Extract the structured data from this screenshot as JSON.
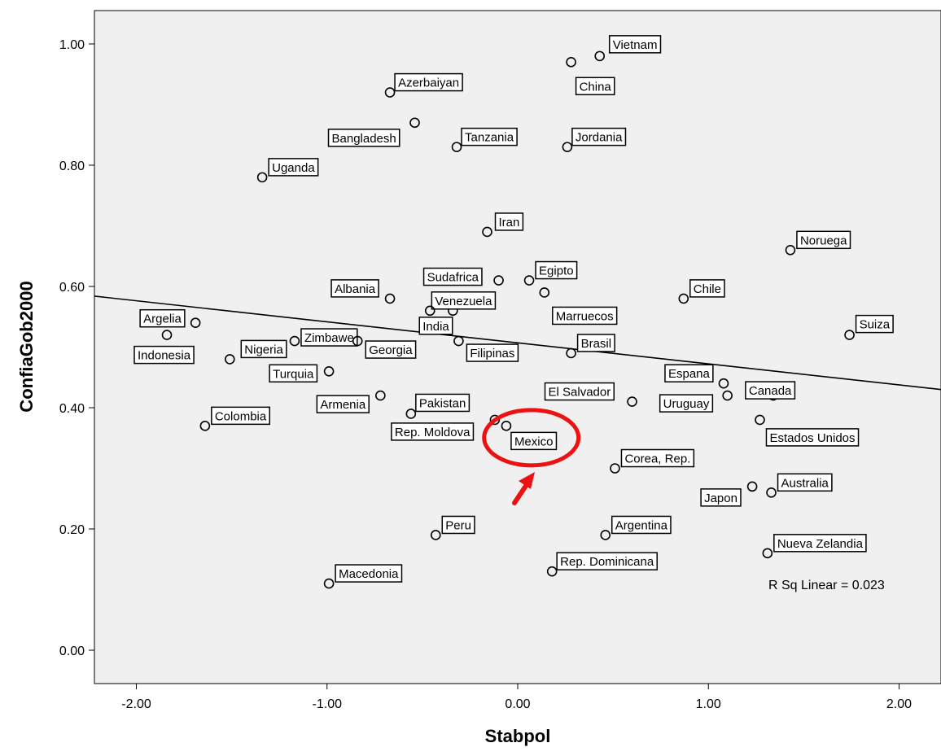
{
  "chart_data": {
    "type": "scatter",
    "xlabel": "Stabpol",
    "ylabel": "ConfiaGob2000",
    "xlim": [
      -2.22,
      2.22
    ],
    "ylim": [
      -0.055,
      1.055
    ],
    "x_ticks": [
      "-2.00",
      "-1.00",
      "0.00",
      "1.00",
      "2.00"
    ],
    "y_ticks": [
      "0.00",
      "0.20",
      "0.40",
      "0.60",
      "0.80",
      "1.00"
    ],
    "x_tick_values": [
      -2,
      -1,
      0,
      1,
      2
    ],
    "y_tick_values": [
      0,
      0.2,
      0.4,
      0.6,
      0.8,
      1.0
    ],
    "points": [
      {
        "label": "Vietnam",
        "x": 0.43,
        "y": 0.98
      },
      {
        "label": "China",
        "x": 0.28,
        "y": 0.97
      },
      {
        "label": "Azerbaiyan",
        "x": -0.67,
        "y": 0.92
      },
      {
        "label": "Bangladesh",
        "x": -0.54,
        "y": 0.87
      },
      {
        "label": "Tanzania",
        "x": -0.32,
        "y": 0.83
      },
      {
        "label": "Jordania",
        "x": 0.26,
        "y": 0.83
      },
      {
        "label": "Uganda",
        "x": -1.34,
        "y": 0.78
      },
      {
        "label": "Iran",
        "x": -0.16,
        "y": 0.69
      },
      {
        "label": "Noruega",
        "x": 1.43,
        "y": 0.66
      },
      {
        "label": "Sudafrica",
        "x": -0.1,
        "y": 0.61
      },
      {
        "label": "Egipto",
        "x": 0.06,
        "y": 0.61
      },
      {
        "label": "Albania",
        "x": -0.67,
        "y": 0.58
      },
      {
        "label": "Chile",
        "x": 0.87,
        "y": 0.58
      },
      {
        "label": "Marruecos",
        "x": 0.14,
        "y": 0.59
      },
      {
        "label": "Venezuela",
        "x": -0.34,
        "y": 0.56
      },
      {
        "label": "Argelia",
        "x": -1.69,
        "y": 0.54
      },
      {
        "label": "Zimbawe",
        "x": -1.17,
        "y": 0.51
      },
      {
        "label": "India",
        "x": -0.46,
        "y": 0.56
      },
      {
        "label": "Indonesia",
        "x": -1.84,
        "y": 0.52
      },
      {
        "label": "Nigeria",
        "x": -1.51,
        "y": 0.48
      },
      {
        "label": "Georgia",
        "x": -0.84,
        "y": 0.51
      },
      {
        "label": "Filipinas",
        "x": -0.31,
        "y": 0.51
      },
      {
        "label": "Brasil",
        "x": 0.28,
        "y": 0.49
      },
      {
        "label": "Suiza",
        "x": 1.74,
        "y": 0.52
      },
      {
        "label": "Turquia",
        "x": -0.99,
        "y": 0.46
      },
      {
        "label": "Espana",
        "x": 1.08,
        "y": 0.44
      },
      {
        "label": "Canada",
        "x": 1.34,
        "y": 0.42
      },
      {
        "label": "El Salvador",
        "x": 0.6,
        "y": 0.41
      },
      {
        "label": "Uruguay",
        "x": 1.1,
        "y": 0.42
      },
      {
        "label": "Colombia",
        "x": -1.64,
        "y": 0.37
      },
      {
        "label": "Armenia",
        "x": -0.72,
        "y": 0.42
      },
      {
        "label": "Pakistan",
        "x": -0.56,
        "y": 0.39
      },
      {
        "label": "Rep. Moldova",
        "x": -0.12,
        "y": 0.38
      },
      {
        "label": "Mexico",
        "x": -0.06,
        "y": 0.37
      },
      {
        "label": "Estados Unidos",
        "x": 1.27,
        "y": 0.38
      },
      {
        "label": "Corea, Rep.",
        "x": 0.51,
        "y": 0.3
      },
      {
        "label": "Australia",
        "x": 1.33,
        "y": 0.26
      },
      {
        "label": "Japon",
        "x": 1.23,
        "y": 0.27
      },
      {
        "label": "Peru",
        "x": -0.43,
        "y": 0.19
      },
      {
        "label": "Argentina",
        "x": 0.46,
        "y": 0.19
      },
      {
        "label": "Nueva Zelandia",
        "x": 1.31,
        "y": 0.16
      },
      {
        "label": "Rep. Dominicana",
        "x": 0.18,
        "y": 0.13
      },
      {
        "label": "Macedonia",
        "x": -0.99,
        "y": 0.11
      }
    ],
    "fit_line": {
      "type": "linear",
      "x": [
        -2.22,
        2.22
      ],
      "y": [
        0.584,
        0.43
      ]
    },
    "annotations": {
      "r_squared": "R Sq Linear = 0.023",
      "highlight": "Mexico",
      "highlight_color": "#ee1111"
    },
    "colors": {
      "plot_background": "#f0f0f0",
      "marker": "#000000",
      "line": "#000000"
    }
  }
}
